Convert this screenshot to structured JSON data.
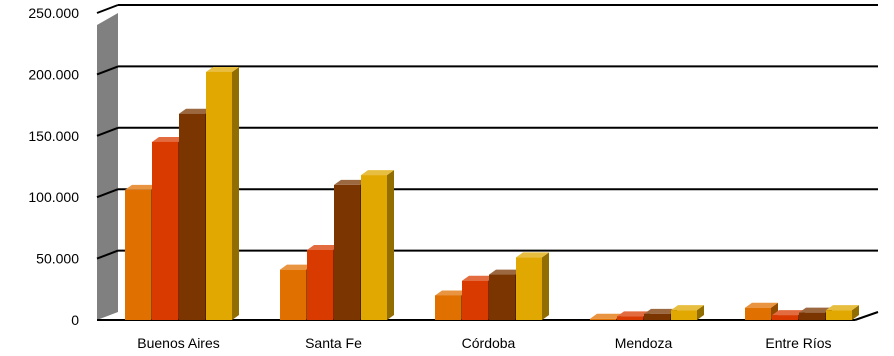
{
  "chart_data": {
    "type": "bar",
    "categories": [
      "Buenos Aires",
      "Santa  Fe",
      "Córdoba",
      "Mendoza",
      "Entre Ríos"
    ],
    "series": [
      {
        "values": [
          106000,
          41000,
          20000,
          1000,
          10000
        ]
      },
      {
        "values": [
          145000,
          57000,
          32000,
          3000,
          4000
        ]
      },
      {
        "values": [
          168000,
          110000,
          37000,
          5000,
          6000
        ]
      },
      {
        "values": [
          202000,
          118000,
          51000,
          8000,
          8000
        ]
      }
    ],
    "y_ticks": [
      "0",
      "50.000",
      "100.000",
      "150.000",
      "200.000",
      "250.000"
    ],
    "ylim": [
      0,
      250000
    ],
    "grid": true,
    "legend": false,
    "title": "",
    "xlabel": "",
    "ylabel": ""
  },
  "colors": {
    "series": [
      "#E07000",
      "#D93A00",
      "#7A3500",
      "#E0A800"
    ],
    "grid": "#000000",
    "wall": "#808080",
    "axis_text": "#000000"
  }
}
